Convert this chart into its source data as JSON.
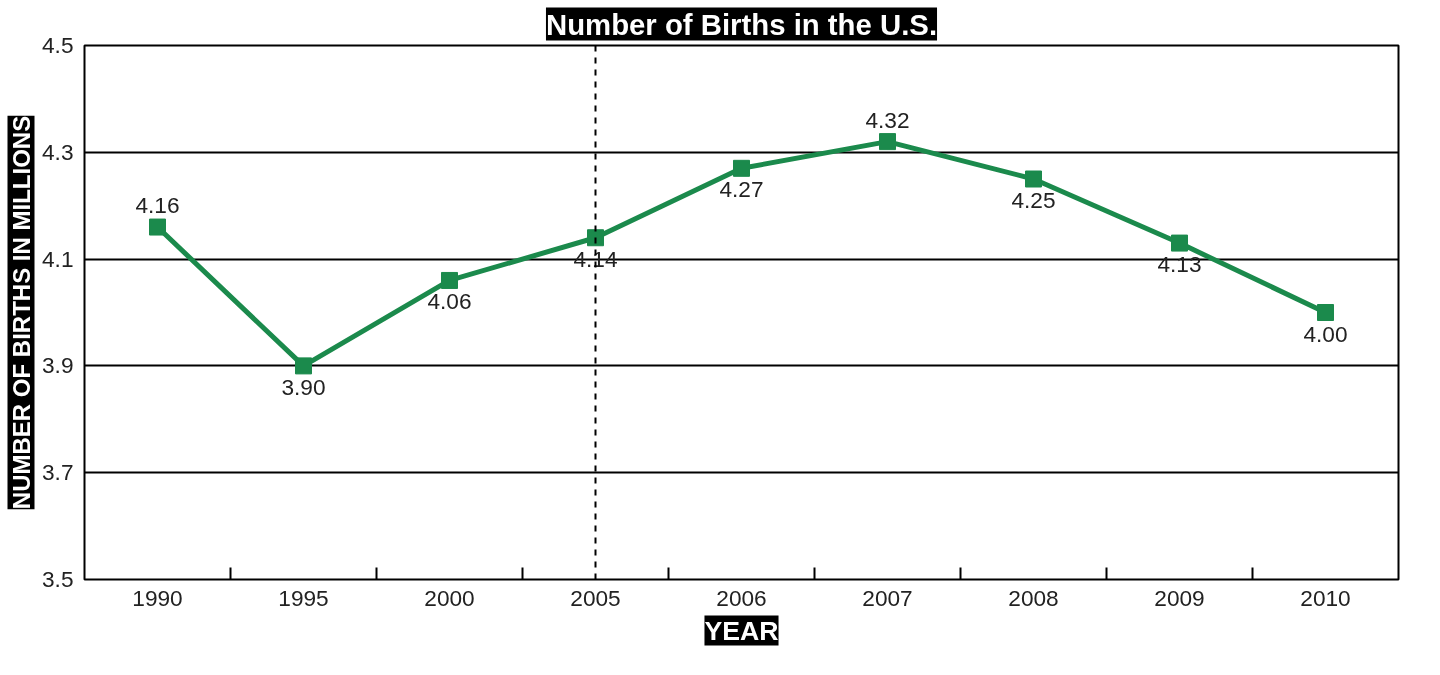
{
  "chart_data": {
    "type": "line",
    "title": "Number of Births in the U.S.",
    "xlabel": "YEAR",
    "ylabel": "NUMBER OF BIRTHS IN MILLIONS",
    "categories": [
      "1990",
      "1995",
      "2000",
      "2005",
      "2006",
      "2007",
      "2008",
      "2009",
      "2010"
    ],
    "series": [
      {
        "color": "#1b8a4c",
        "values": [
          4.16,
          3.9,
          4.06,
          4.14,
          4.27,
          4.32,
          4.25,
          4.13,
          4.0
        ],
        "value_labels": [
          "4.16",
          "3.90",
          "4.06",
          "4.14",
          "4.27",
          "4.32",
          "4.25",
          "4.13",
          "4.00"
        ]
      }
    ],
    "ylim": [
      3.5,
      4.5
    ],
    "yticks": [
      3.5,
      3.7,
      3.9,
      4.1,
      4.3,
      4.5
    ],
    "ref_lines": [
      {
        "axis": "x",
        "value": "2005",
        "line_style": "dashed",
        "color": "#000000"
      }
    ],
    "grid": "y",
    "marker": "square",
    "line_style": "solid"
  }
}
